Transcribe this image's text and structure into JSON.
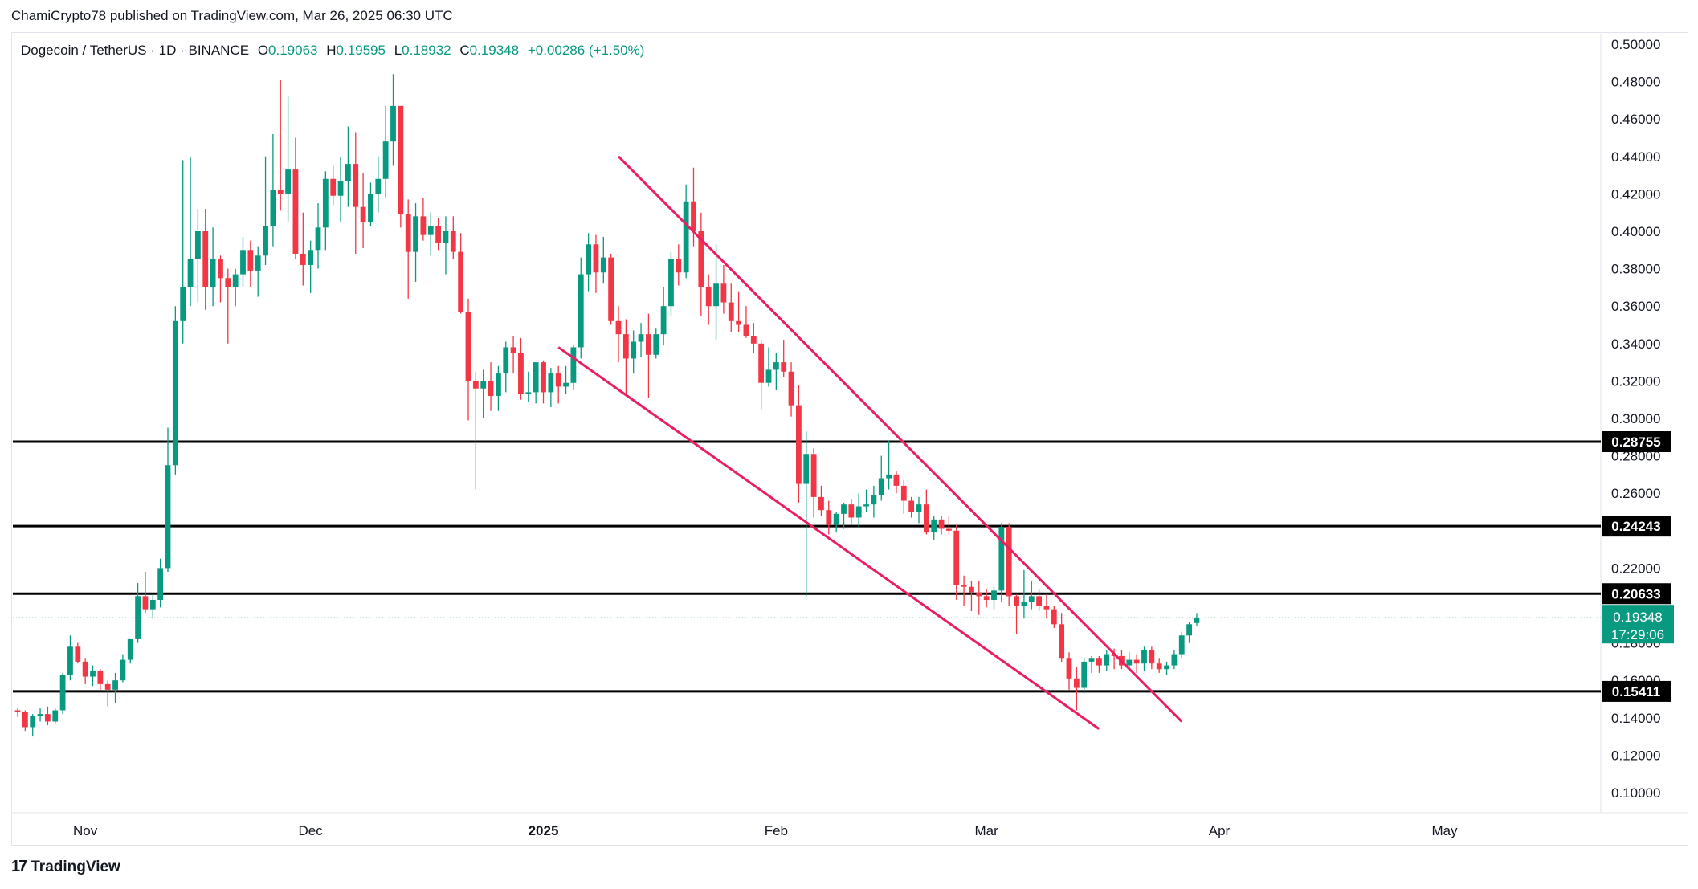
{
  "caption": "ChamiCrypto78 published on TradingView.com, Mar 26, 2025 06:30 UTC",
  "brand": "TradingView",
  "brand_icon": "tradingview-logo-icon",
  "legend": {
    "symbol": "Dogecoin / TetherUS · 1D · BINANCE",
    "o_label": "O",
    "o_value": "0.19063",
    "h_label": "H",
    "h_value": "0.19595",
    "l_label": "L",
    "l_value": "0.18932",
    "c_label": "C",
    "c_value": "0.19348",
    "change": "+0.00286 (+1.50%)"
  },
  "colors": {
    "up": "#089981",
    "down": "#f23645",
    "trendline": "#e91e63",
    "level": "#000000",
    "last_price": "#089981"
  },
  "chart_data": {
    "type": "candlestick",
    "title": "Dogecoin / TetherUS · 1D · BINANCE",
    "ylim": [
      0.09,
      0.505
    ],
    "y_ticks": [
      "0.50000",
      "0.48000",
      "0.46000",
      "0.44000",
      "0.42000",
      "0.40000",
      "0.38000",
      "0.36000",
      "0.34000",
      "0.32000",
      "0.30000",
      "0.28000",
      "0.26000",
      "0.22000",
      "0.18000",
      "0.16000",
      "0.14000",
      "0.12000",
      "0.10000"
    ],
    "x_ticks": [
      "Nov",
      "Dec",
      "2025",
      "Feb",
      "Mar",
      "Apr",
      "May"
    ],
    "x_tick_dates": [
      "2024-11-01",
      "2024-12-01",
      "2025-01-01",
      "2025-02-01",
      "2025-03-01",
      "2025-04-01",
      "2025-05-01"
    ],
    "first_date": "2024-10-23",
    "last_price": {
      "value": 0.19348,
      "label": "0.19348",
      "countdown": "17:29:06"
    },
    "levels": [
      {
        "value": 0.28755,
        "label": "0.28755"
      },
      {
        "value": 0.24243,
        "label": "0.24243"
      },
      {
        "value": 0.20633,
        "label": "0.20633"
      },
      {
        "value": 0.15411,
        "label": "0.15411"
      }
    ],
    "trendlines": [
      {
        "name": "upper",
        "from": [
          "2025-01-11",
          0.44
        ],
        "to": [
          "2025-03-27",
          0.138
        ]
      },
      {
        "name": "lower",
        "from": [
          "2025-01-03",
          0.338
        ],
        "to": [
          "2025-03-16",
          0.134
        ]
      }
    ],
    "candles": [
      [
        0.144,
        0.145,
        0.1405,
        0.143
      ],
      [
        0.143,
        0.144,
        0.133,
        0.135
      ],
      [
        0.135,
        0.142,
        0.13,
        0.141
      ],
      [
        0.141,
        0.145,
        0.138,
        0.142
      ],
      [
        0.142,
        0.146,
        0.136,
        0.138
      ],
      [
        0.138,
        0.145,
        0.137,
        0.144
      ],
      [
        0.144,
        0.164,
        0.142,
        0.163
      ],
      [
        0.163,
        0.184,
        0.16,
        0.178
      ],
      [
        0.178,
        0.18,
        0.169,
        0.17
      ],
      [
        0.17,
        0.172,
        0.158,
        0.162
      ],
      [
        0.162,
        0.168,
        0.157,
        0.165
      ],
      [
        0.165,
        0.166,
        0.155,
        0.158
      ],
      [
        0.158,
        0.16,
        0.146,
        0.155
      ],
      [
        0.155,
        0.164,
        0.148,
        0.16
      ],
      [
        0.16,
        0.174,
        0.159,
        0.171
      ],
      [
        0.171,
        0.182,
        0.169,
        0.182
      ],
      [
        0.182,
        0.212,
        0.18,
        0.205
      ],
      [
        0.205,
        0.218,
        0.196,
        0.198
      ],
      [
        0.198,
        0.206,
        0.193,
        0.203
      ],
      [
        0.203,
        0.225,
        0.199,
        0.22
      ],
      [
        0.22,
        0.295,
        0.218,
        0.275
      ],
      [
        0.275,
        0.36,
        0.27,
        0.352
      ],
      [
        0.352,
        0.438,
        0.34,
        0.37
      ],
      [
        0.37,
        0.44,
        0.36,
        0.385
      ],
      [
        0.385,
        0.412,
        0.362,
        0.4
      ],
      [
        0.4,
        0.412,
        0.358,
        0.37
      ],
      [
        0.37,
        0.402,
        0.36,
        0.385
      ],
      [
        0.385,
        0.387,
        0.362,
        0.375
      ],
      [
        0.375,
        0.38,
        0.34,
        0.37
      ],
      [
        0.37,
        0.38,
        0.36,
        0.377
      ],
      [
        0.377,
        0.397,
        0.37,
        0.39
      ],
      [
        0.39,
        0.395,
        0.37,
        0.379
      ],
      [
        0.379,
        0.392,
        0.365,
        0.387
      ],
      [
        0.387,
        0.44,
        0.382,
        0.403
      ],
      [
        0.403,
        0.452,
        0.392,
        0.422
      ],
      [
        0.422,
        0.481,
        0.411,
        0.42
      ],
      [
        0.42,
        0.472,
        0.405,
        0.433
      ],
      [
        0.433,
        0.45,
        0.385,
        0.388
      ],
      [
        0.388,
        0.41,
        0.371,
        0.382
      ],
      [
        0.382,
        0.395,
        0.367,
        0.39
      ],
      [
        0.39,
        0.415,
        0.38,
        0.402
      ],
      [
        0.402,
        0.432,
        0.39,
        0.428
      ],
      [
        0.428,
        0.435,
        0.414,
        0.419
      ],
      [
        0.419,
        0.44,
        0.405,
        0.427
      ],
      [
        0.427,
        0.456,
        0.413,
        0.436
      ],
      [
        0.436,
        0.453,
        0.388,
        0.413
      ],
      [
        0.413,
        0.431,
        0.391,
        0.405
      ],
      [
        0.405,
        0.426,
        0.403,
        0.42
      ],
      [
        0.42,
        0.44,
        0.41,
        0.428
      ],
      [
        0.428,
        0.467,
        0.418,
        0.448
      ],
      [
        0.448,
        0.484,
        0.435,
        0.467
      ],
      [
        0.467,
        0.467,
        0.402,
        0.409
      ],
      [
        0.409,
        0.417,
        0.364,
        0.389
      ],
      [
        0.389,
        0.415,
        0.373,
        0.408
      ],
      [
        0.408,
        0.418,
        0.395,
        0.398
      ],
      [
        0.398,
        0.41,
        0.387,
        0.403
      ],
      [
        0.403,
        0.407,
        0.39,
        0.394
      ],
      [
        0.394,
        0.408,
        0.377,
        0.4
      ],
      [
        0.4,
        0.408,
        0.385,
        0.389
      ],
      [
        0.389,
        0.399,
        0.356,
        0.357
      ],
      [
        0.357,
        0.364,
        0.299,
        0.32
      ],
      [
        0.32,
        0.325,
        0.262,
        0.316
      ],
      [
        0.316,
        0.326,
        0.3,
        0.32
      ],
      [
        0.32,
        0.33,
        0.304,
        0.312
      ],
      [
        0.312,
        0.328,
        0.304,
        0.324
      ],
      [
        0.324,
        0.341,
        0.314,
        0.338
      ],
      [
        0.338,
        0.344,
        0.324,
        0.335
      ],
      [
        0.335,
        0.343,
        0.31,
        0.313
      ],
      [
        0.313,
        0.325,
        0.309,
        0.314
      ],
      [
        0.314,
        0.329,
        0.308,
        0.33
      ],
      [
        0.33,
        0.331,
        0.308,
        0.314
      ],
      [
        0.314,
        0.327,
        0.306,
        0.324
      ],
      [
        0.324,
        0.328,
        0.308,
        0.317
      ],
      [
        0.317,
        0.328,
        0.313,
        0.319
      ],
      [
        0.319,
        0.339,
        0.315,
        0.338
      ],
      [
        0.338,
        0.386,
        0.332,
        0.377
      ],
      [
        0.377,
        0.399,
        0.368,
        0.393
      ],
      [
        0.393,
        0.398,
        0.367,
        0.378
      ],
      [
        0.378,
        0.397,
        0.372,
        0.386
      ],
      [
        0.386,
        0.388,
        0.35,
        0.352
      ],
      [
        0.352,
        0.36,
        0.33,
        0.345
      ],
      [
        0.345,
        0.353,
        0.313,
        0.332
      ],
      [
        0.332,
        0.347,
        0.324,
        0.341
      ],
      [
        0.341,
        0.351,
        0.333,
        0.345
      ],
      [
        0.345,
        0.356,
        0.311,
        0.334
      ],
      [
        0.334,
        0.348,
        0.332,
        0.345
      ],
      [
        0.345,
        0.37,
        0.339,
        0.36
      ],
      [
        0.36,
        0.389,
        0.355,
        0.385
      ],
      [
        0.385,
        0.393,
        0.371,
        0.378
      ],
      [
        0.378,
        0.425,
        0.375,
        0.416
      ],
      [
        0.416,
        0.434,
        0.392,
        0.4
      ],
      [
        0.4,
        0.41,
        0.355,
        0.37
      ],
      [
        0.37,
        0.377,
        0.35,
        0.36
      ],
      [
        0.36,
        0.393,
        0.342,
        0.372
      ],
      [
        0.372,
        0.382,
        0.356,
        0.362
      ],
      [
        0.362,
        0.372,
        0.346,
        0.352
      ],
      [
        0.352,
        0.368,
        0.346,
        0.35
      ],
      [
        0.35,
        0.36,
        0.343,
        0.344
      ],
      [
        0.344,
        0.351,
        0.335,
        0.34
      ],
      [
        0.34,
        0.342,
        0.305,
        0.319
      ],
      [
        0.319,
        0.338,
        0.317,
        0.326
      ],
      [
        0.326,
        0.335,
        0.315,
        0.33
      ],
      [
        0.33,
        0.342,
        0.322,
        0.325
      ],
      [
        0.325,
        0.33,
        0.301,
        0.307
      ],
      [
        0.307,
        0.318,
        0.255,
        0.265
      ],
      [
        0.265,
        0.293,
        0.205,
        0.281
      ],
      [
        0.281,
        0.284,
        0.247,
        0.258
      ],
      [
        0.258,
        0.264,
        0.248,
        0.251
      ],
      [
        0.251,
        0.256,
        0.238,
        0.243
      ],
      [
        0.243,
        0.25,
        0.239,
        0.249
      ],
      [
        0.249,
        0.255,
        0.241,
        0.254
      ],
      [
        0.254,
        0.257,
        0.243,
        0.247
      ],
      [
        0.247,
        0.26,
        0.242,
        0.253
      ],
      [
        0.253,
        0.262,
        0.25,
        0.254
      ],
      [
        0.254,
        0.264,
        0.247,
        0.259
      ],
      [
        0.259,
        0.28,
        0.256,
        0.268
      ],
      [
        0.268,
        0.288,
        0.262,
        0.27
      ],
      [
        0.27,
        0.272,
        0.26,
        0.264
      ],
      [
        0.264,
        0.267,
        0.249,
        0.256
      ],
      [
        0.256,
        0.258,
        0.247,
        0.25
      ],
      [
        0.25,
        0.258,
        0.244,
        0.254
      ],
      [
        0.254,
        0.262,
        0.238,
        0.239
      ],
      [
        0.239,
        0.248,
        0.235,
        0.246
      ],
      [
        0.246,
        0.248,
        0.238,
        0.241
      ],
      [
        0.241,
        0.248,
        0.238,
        0.24
      ],
      [
        0.24,
        0.243,
        0.203,
        0.211
      ],
      [
        0.211,
        0.216,
        0.2,
        0.21
      ],
      [
        0.21,
        0.213,
        0.197,
        0.207
      ],
      [
        0.207,
        0.213,
        0.195,
        0.205
      ],
      [
        0.205,
        0.209,
        0.199,
        0.203
      ],
      [
        0.203,
        0.21,
        0.198,
        0.208
      ],
      [
        0.208,
        0.244,
        0.202,
        0.242
      ],
      [
        0.242,
        0.244,
        0.2,
        0.205
      ],
      [
        0.205,
        0.206,
        0.185,
        0.2
      ],
      [
        0.2,
        0.219,
        0.193,
        0.202
      ],
      [
        0.202,
        0.213,
        0.198,
        0.205
      ],
      [
        0.205,
        0.209,
        0.197,
        0.2
      ],
      [
        0.2,
        0.206,
        0.193,
        0.198
      ],
      [
        0.198,
        0.2,
        0.188,
        0.19
      ],
      [
        0.19,
        0.196,
        0.17,
        0.172
      ],
      [
        0.172,
        0.175,
        0.155,
        0.161
      ],
      [
        0.161,
        0.167,
        0.144,
        0.156
      ],
      [
        0.156,
        0.172,
        0.153,
        0.17
      ],
      [
        0.17,
        0.173,
        0.164,
        0.172
      ],
      [
        0.172,
        0.173,
        0.164,
        0.168
      ],
      [
        0.168,
        0.176,
        0.165,
        0.174
      ],
      [
        0.174,
        0.177,
        0.166,
        0.173
      ],
      [
        0.173,
        0.176,
        0.166,
        0.168
      ],
      [
        0.168,
        0.175,
        0.166,
        0.171
      ],
      [
        0.171,
        0.174,
        0.164,
        0.169
      ],
      [
        0.169,
        0.178,
        0.165,
        0.176
      ],
      [
        0.176,
        0.178,
        0.166,
        0.169
      ],
      [
        0.169,
        0.172,
        0.164,
        0.166
      ],
      [
        0.166,
        0.17,
        0.163,
        0.168
      ],
      [
        0.168,
        0.176,
        0.166,
        0.174
      ],
      [
        0.174,
        0.186,
        0.172,
        0.184
      ],
      [
        0.184,
        0.191,
        0.18,
        0.19
      ],
      [
        0.19063,
        0.19595,
        0.18932,
        0.19348
      ]
    ]
  }
}
